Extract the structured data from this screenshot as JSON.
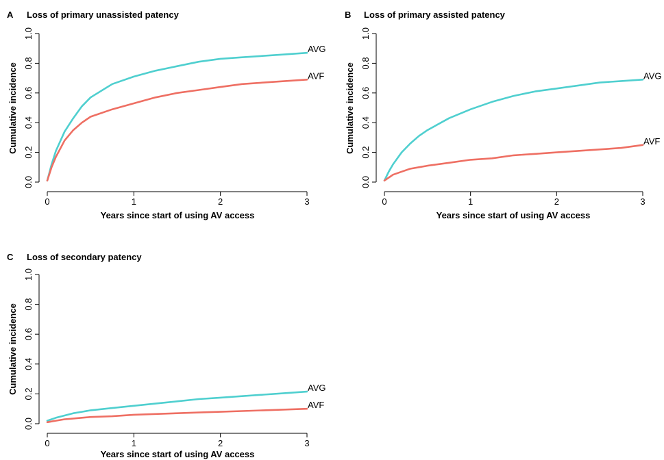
{
  "colors": {
    "avg": "#4fcfcf",
    "avf": "#ee6f63"
  },
  "chart_data": [
    {
      "type": "line",
      "panel": "A",
      "title": "Loss of primary unassisted patency",
      "xlabel": "Years since start of using AV access",
      "ylabel": "Cumulative incidence",
      "xlim": [
        0,
        3
      ],
      "ylim": [
        0,
        1
      ],
      "xticks": [
        0,
        1,
        2,
        3
      ],
      "yticks": [
        "0.0",
        "0.2",
        "0.4",
        "0.6",
        "0.8",
        "1.0"
      ],
      "grid": false,
      "x": [
        0,
        0.05,
        0.1,
        0.2,
        0.3,
        0.4,
        0.5,
        0.75,
        1.0,
        1.25,
        1.5,
        1.75,
        2.0,
        2.25,
        2.5,
        2.75,
        3.0
      ],
      "series": [
        {
          "name": "AVG",
          "values": [
            0.01,
            0.12,
            0.21,
            0.34,
            0.43,
            0.51,
            0.57,
            0.66,
            0.71,
            0.75,
            0.78,
            0.81,
            0.83,
            0.84,
            0.85,
            0.86,
            0.87
          ]
        },
        {
          "name": "AVF",
          "values": [
            0.01,
            0.1,
            0.17,
            0.28,
            0.35,
            0.4,
            0.44,
            0.49,
            0.53,
            0.57,
            0.6,
            0.62,
            0.64,
            0.66,
            0.67,
            0.68,
            0.69
          ]
        }
      ]
    },
    {
      "type": "line",
      "panel": "B",
      "title": "Loss of primary assisted patency",
      "xlabel": "Years since start of using AV access",
      "ylabel": "Cumulative incidence",
      "xlim": [
        0,
        3
      ],
      "ylim": [
        0,
        1
      ],
      "xticks": [
        0,
        1,
        2,
        3
      ],
      "yticks": [
        "0.0",
        "0.2",
        "0.4",
        "0.6",
        "0.8",
        "1.0"
      ],
      "grid": false,
      "x": [
        0,
        0.05,
        0.1,
        0.2,
        0.3,
        0.4,
        0.5,
        0.75,
        1.0,
        1.25,
        1.5,
        1.75,
        2.0,
        2.25,
        2.5,
        2.75,
        3.0
      ],
      "series": [
        {
          "name": "AVG",
          "values": [
            0.01,
            0.07,
            0.12,
            0.2,
            0.26,
            0.31,
            0.35,
            0.43,
            0.49,
            0.54,
            0.58,
            0.61,
            0.63,
            0.65,
            0.67,
            0.68,
            0.69
          ]
        },
        {
          "name": "AVF",
          "values": [
            0.01,
            0.03,
            0.05,
            0.07,
            0.09,
            0.1,
            0.11,
            0.13,
            0.15,
            0.16,
            0.18,
            0.19,
            0.2,
            0.21,
            0.22,
            0.23,
            0.25
          ]
        }
      ]
    },
    {
      "type": "line",
      "panel": "C",
      "title": "Loss of secondary patency",
      "xlabel": "Years since start of using AV access",
      "ylabel": "Cumulative incidence",
      "xlim": [
        0,
        3
      ],
      "ylim": [
        0,
        1
      ],
      "xticks": [
        0,
        1,
        2,
        3
      ],
      "yticks": [
        "0.0",
        "0.2",
        "0.4",
        "0.6",
        "0.8",
        "1.0"
      ],
      "grid": false,
      "x": [
        0,
        0.05,
        0.1,
        0.2,
        0.3,
        0.4,
        0.5,
        0.75,
        1.0,
        1.25,
        1.5,
        1.75,
        2.0,
        2.25,
        2.5,
        2.75,
        3.0
      ],
      "series": [
        {
          "name": "AVG",
          "values": [
            0.02,
            0.03,
            0.04,
            0.055,
            0.07,
            0.08,
            0.09,
            0.105,
            0.12,
            0.135,
            0.15,
            0.165,
            0.175,
            0.185,
            0.195,
            0.205,
            0.215
          ]
        },
        {
          "name": "AVF",
          "values": [
            0.01,
            0.015,
            0.02,
            0.03,
            0.035,
            0.04,
            0.045,
            0.05,
            0.06,
            0.065,
            0.07,
            0.075,
            0.08,
            0.085,
            0.09,
            0.095,
            0.1
          ]
        }
      ]
    }
  ]
}
